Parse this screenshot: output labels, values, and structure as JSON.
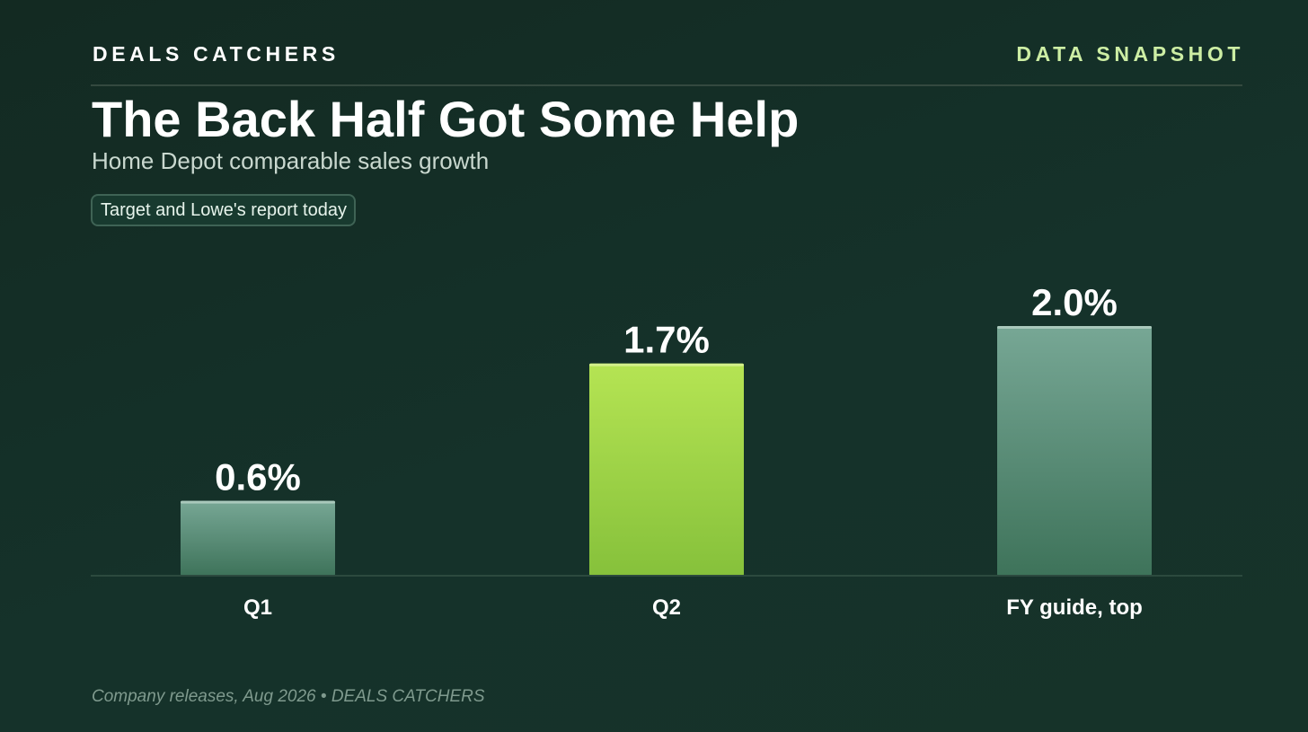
{
  "header": {
    "brand": "DEALS CATCHERS",
    "tag": "DATA SNAPSHOT"
  },
  "title": "The Back Half Got Some Help",
  "subtitle": "Home Depot comparable sales growth",
  "callout": "Target and Lowe's report today",
  "footer": "Company releases, Aug 2026 • DEALS CATCHERS",
  "colors": {
    "background": "#15302a",
    "accent": "#cdeea4",
    "highlight_bar": "#a6dc4a",
    "default_bar": "#5e9580",
    "baseline": "#2c4a3e"
  },
  "chart_data": {
    "type": "bar",
    "categories": [
      "Q1",
      "Q2",
      "FY guide, top"
    ],
    "values": [
      0.6,
      1.7,
      2.0
    ],
    "value_labels": [
      "0.6%",
      "1.7%",
      "2.0%"
    ],
    "highlight": "Q2",
    "unit": "%",
    "ylim": [
      0,
      2.2
    ],
    "grid": false,
    "legend": "none"
  }
}
